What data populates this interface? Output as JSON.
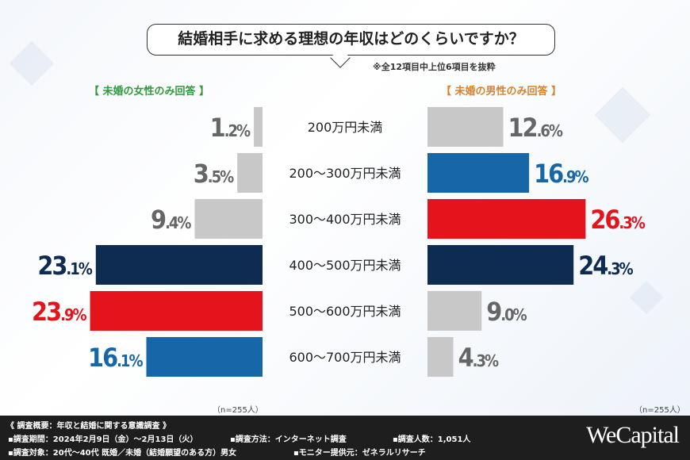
{
  "title": "結婚相手に求める理想の年収はどのくらいですか？",
  "note": "※全12項目中上位6項目を抜粋",
  "chart_data": {
    "type": "bar",
    "categories": [
      "200万円未満",
      "200～300万円未満",
      "300～400万円未満",
      "400～500万円未満",
      "500～600万円未満",
      "600～700万円未満"
    ],
    "series": [
      {
        "name": "【 未婚の女性のみ回答 】",
        "values": [
          1.2,
          3.5,
          9.4,
          23.1,
          23.9,
          16.1
        ],
        "colors": [
          "#c8c8c8",
          "#c8c8c8",
          "#c8c8c8",
          "#0e2c52",
          "#e3141c",
          "#1766a8"
        ]
      },
      {
        "name": "【 未婚の男性のみ回答 】",
        "values": [
          12.6,
          16.9,
          26.3,
          24.3,
          9.0,
          4.3
        ],
        "colors": [
          "#c8c8c8",
          "#1766a8",
          "#e3141c",
          "#0e2c52",
          "#c8c8c8",
          "#c8c8c8"
        ]
      }
    ],
    "unit": "%",
    "sample": [
      "（n=255人）",
      "（n=255人）"
    ]
  },
  "footer": {
    "line1": "《 調査概要：年収と結婚に関する意識調査 》",
    "period": "▪調査期間：2024年2月9日（金）～2月13日（火）",
    "method": "▪調査方法：インターネット調査",
    "count": "▪調査人数：1,051人",
    "target": "▪調査対象：20代～40代 既婚／未婚（結婚願望のある方）男女",
    "provider": "▪モニター提供元：ゼネラルリサーチ",
    "logo": "WeCapital"
  }
}
